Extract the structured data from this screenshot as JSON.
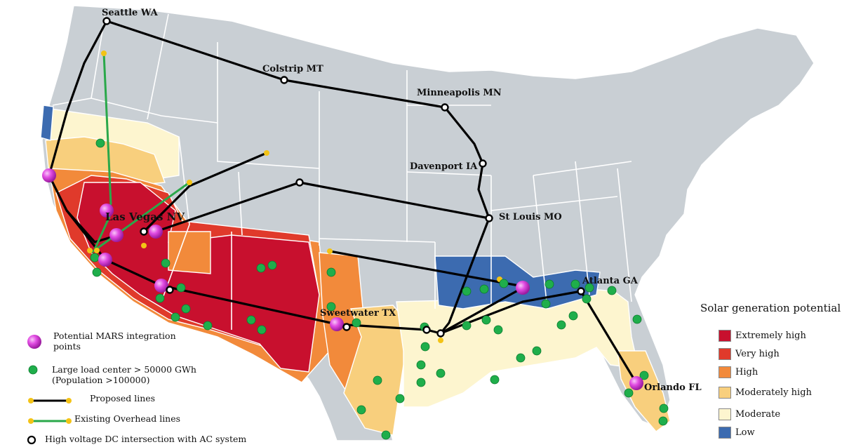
{
  "colors": {
    "extremely_high": "#c8102e",
    "very_high": "#e03a2b",
    "high": "#f28a3b",
    "moderately_high": "#f8cf7d",
    "moderate": "#fdf5cf",
    "low": "#3c6bb0",
    "land": "#c9cfd4",
    "border": "#ffffff",
    "proposed_line": "#000000",
    "existing_line": "#2aa84a",
    "node": "#f3c316",
    "load_center": "#1fae4b",
    "mars_point": "#d63ad8"
  },
  "cities": {
    "seattle": "Seattle WA",
    "colstrip": "Colstrip MT",
    "minneapolis": "Minneapolis MN",
    "davenport": "Davenport IA",
    "st_louis": "St Louis MO",
    "las_vegas": "Las Vegas NV",
    "sweetwater": "Sweetwater TX",
    "atlanta": "Atlanta GA",
    "orlando": "Orlando FL"
  },
  "legend_left": {
    "mars": "Potential MARS integration points",
    "load": "Large load center > 50000 GWh (Population >100000)",
    "proposed": "Proposed lines",
    "existing": "Existing Overhead lines",
    "hvdc": "High voltage DC intersection with AC system"
  },
  "legend_right": {
    "title": "Solar generation potential",
    "items": [
      "Extremely high",
      "Very high",
      "High",
      "Moderately high",
      "Moderate",
      "Low"
    ]
  }
}
